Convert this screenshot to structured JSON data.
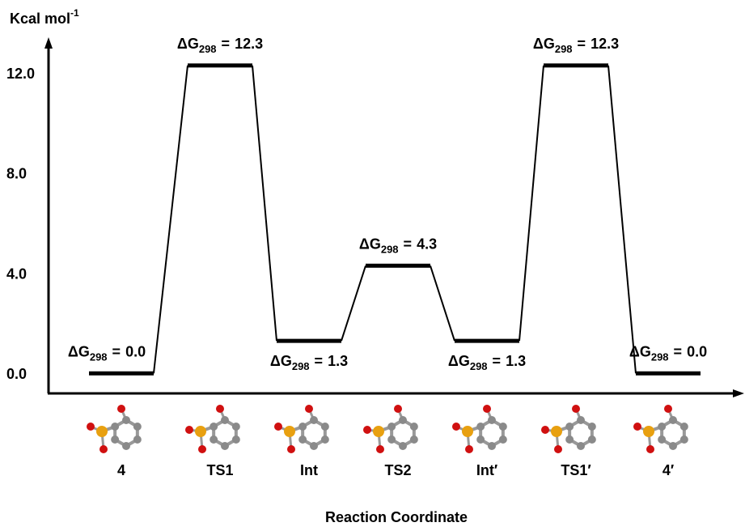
{
  "chart_data": {
    "type": "energy-profile",
    "ylabel": "Kcal mol",
    "ylabel_superscript": "-1",
    "xlabel": "Reaction Coordinate",
    "categories": [
      "4",
      "TS1",
      "Int",
      "TS2",
      "Int′",
      "TS1′",
      "4′"
    ],
    "values": [
      0.0,
      12.3,
      1.3,
      4.3,
      1.3,
      12.3,
      0.0
    ],
    "value_labels": [
      "0.0",
      "12.3",
      "1.3",
      "4.3",
      "1.3",
      "12.3",
      "0.0"
    ],
    "label_prefix": "ΔG",
    "label_subscript": "298",
    "label_relation": "=",
    "ylim": [
      -0.8,
      13.3
    ],
    "yticks": [
      {
        "value": 0,
        "label": "0.0"
      },
      {
        "value": 4,
        "label": "4.0"
      },
      {
        "value": 8,
        "label": "8.0"
      },
      {
        "value": 12,
        "label": "12.0"
      }
    ],
    "color": "#000000"
  }
}
